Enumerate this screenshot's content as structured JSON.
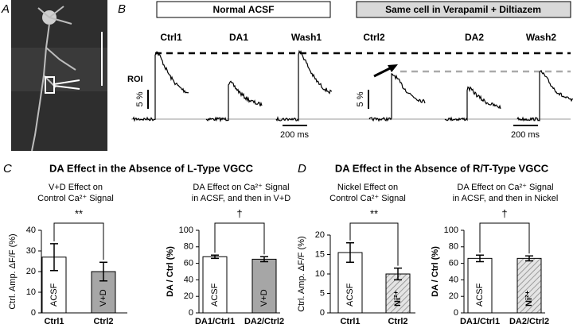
{
  "figure": {
    "panel_labels": [
      "A",
      "B",
      "C",
      "D"
    ],
    "conditions": [
      "Normal ACSF",
      "Same cell in Verapamil + Diltiazem"
    ],
    "traces": [
      "Ctrl1",
      "DA1",
      "Wash1",
      "Ctrl2",
      "DA2",
      "Wash2"
    ],
    "roi_label": "ROI",
    "amp_scale": "5 %",
    "time_scales": [
      "200 ms",
      "200 ms"
    ],
    "panel_c_title": "DA Effect in the Absence of L-Type VGCC",
    "panel_d_title": "DA Effect in the Absence of R/T-Type VGCC"
  },
  "chart_data": [
    {
      "type": "bar",
      "title": [
        "V+D Effect on",
        "Control Ca²⁺ Signal"
      ],
      "ylabel": "Ctrl. Amp. ΔF/F (%)",
      "categories": [
        "Ctrl1",
        "Ctrl2"
      ],
      "values": [
        27,
        20
      ],
      "errors": [
        6.5,
        4.5
      ],
      "bar_labels": [
        "ACSF",
        "V+D"
      ],
      "colors": [
        "#ffffff",
        "#a6a6a6"
      ],
      "hatched": [
        false,
        false
      ],
      "significance": "**",
      "ylim": [
        0,
        40
      ],
      "yticks": [
        0,
        10,
        20,
        30,
        40
      ]
    },
    {
      "type": "bar",
      "title": [
        "DA Effect on Ca²⁺ Signal",
        "in ACSF, and then in V+D"
      ],
      "ylabel": "DA / Ctrl (%)",
      "categories": [
        "DA1/Ctrl1",
        "DA2/Ctrl2"
      ],
      "values": [
        68,
        65
      ],
      "errors": [
        2,
        3
      ],
      "bar_labels": [
        "ACSF",
        "V+D"
      ],
      "colors": [
        "#ffffff",
        "#a6a6a6"
      ],
      "hatched": [
        false,
        false
      ],
      "significance": "†",
      "ylim": [
        0,
        100
      ],
      "yticks": [
        0,
        20,
        40,
        60,
        80,
        100
      ]
    },
    {
      "type": "bar",
      "title": [
        "Nickel Effect on",
        "Control Ca²⁺ Signal"
      ],
      "ylabel": "Ctrl. Amp. ΔF/F (%)",
      "categories": [
        "Ctrl1",
        "Ctrl2"
      ],
      "values": [
        15.5,
        10
      ],
      "errors": [
        2.5,
        1.5
      ],
      "bar_labels": [
        "ACSF",
        "Ni²⁺"
      ],
      "colors": [
        "#ffffff",
        "#d0d0d0"
      ],
      "hatched": [
        false,
        true
      ],
      "significance": "**",
      "ylim": [
        0,
        20
      ],
      "yticks": [
        0,
        5,
        10,
        15,
        20
      ]
    },
    {
      "type": "bar",
      "title": [
        "DA Effect on Ca²⁺ Signal",
        "in ACSF, and then in Nickel"
      ],
      "ylabel": "DA / Ctrl (%)",
      "categories": [
        "DA1/Ctrl1",
        "DA2/Ctrl2"
      ],
      "values": [
        66,
        66
      ],
      "errors": [
        4,
        3
      ],
      "bar_labels": [
        "ACSF",
        "Ni²⁺"
      ],
      "colors": [
        "#ffffff",
        "#d0d0d0"
      ],
      "hatched": [
        false,
        true
      ],
      "significance": "†",
      "ylim": [
        0,
        100
      ],
      "yticks": [
        0,
        20,
        40,
        60,
        80,
        100
      ]
    }
  ]
}
